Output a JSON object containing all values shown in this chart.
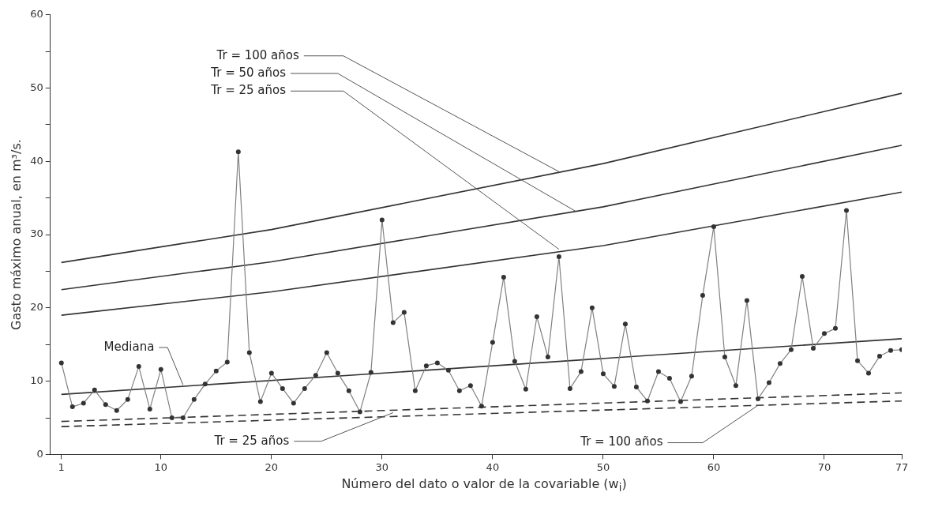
{
  "chart_data": {
    "type": "line",
    "xlabel": "Número del dato o valor de la covariable (w$_{i}$)",
    "ylabel": "Gasto máximo anual, en m³/s.",
    "xlim": [
      0,
      77
    ],
    "xticks": [
      1,
      10,
      20,
      30,
      40,
      50,
      60,
      70,
      77
    ],
    "ylim": [
      0,
      60
    ],
    "yticks": [
      0,
      {
        "value": 5,
        "label": null
      },
      10,
      {
        "value": 15,
        "label": null
      },
      20,
      {
        "value": 25,
        "label": null
      },
      30,
      {
        "value": 35,
        "label": null
      },
      40,
      {
        "value": 45,
        "label": null
      },
      50,
      {
        "value": 55,
        "label": null
      },
      60
    ],
    "grid": false,
    "legend": false,
    "series": [
      {
        "marker": "circle",
        "line_style": "solid",
        "color": "#808080",
        "x": [
          1,
          2,
          3,
          4,
          5,
          6,
          7,
          8,
          9,
          10,
          11,
          12,
          13,
          14,
          15,
          16,
          17,
          18,
          19,
          20,
          21,
          22,
          23,
          24,
          25,
          26,
          27,
          28,
          29,
          30,
          31,
          32,
          33,
          34,
          35,
          36,
          37,
          38,
          39,
          40,
          41,
          42,
          43,
          44,
          45,
          46,
          47,
          48,
          49,
          50,
          51,
          52,
          53,
          54,
          55,
          56,
          57,
          58,
          59,
          60,
          61,
          62,
          63,
          64,
          65,
          66,
          67,
          68,
          69,
          70,
          71,
          72,
          73,
          74,
          75,
          76,
          77
        ],
        "values": [
          12.5,
          6.5,
          7.0,
          8.8,
          6.8,
          6.0,
          7.5,
          12.0,
          6.2,
          11.6,
          5.0,
          5.0,
          7.5,
          9.6,
          11.4,
          12.6,
          41.3,
          13.9,
          7.2,
          11.1,
          9.0,
          7.0,
          9.0,
          10.8,
          13.9,
          11.1,
          8.7,
          5.8,
          11.2,
          32.0,
          18.0,
          19.4,
          8.7,
          12.1,
          12.5,
          11.5,
          8.7,
          9.4,
          6.6,
          15.3,
          24.2,
          12.7,
          8.9,
          18.8,
          13.3,
          27.0,
          9.0,
          11.3,
          20.0,
          11.0,
          9.3,
          17.8,
          9.2,
          7.3,
          11.3,
          10.4,
          7.2,
          10.7,
          21.7,
          31.1,
          13.3,
          9.4,
          21.0,
          7.6,
          9.8,
          12.4,
          14.3,
          24.3,
          14.5,
          16.5,
          17.2,
          33.3,
          12.8,
          11.1,
          13.4,
          14.2,
          14.3
        ]
      },
      {
        "marker": "none",
        "line_style": "solid",
        "color": "#333333",
        "x": [
          1,
          20,
          50,
          77
        ],
        "values": [
          26.2,
          30.7,
          39.7,
          49.3
        ]
      },
      {
        "marker": "none",
        "line_style": "solid",
        "color": "#333333",
        "x": [
          1,
          20,
          50,
          77
        ],
        "values": [
          22.5,
          26.3,
          33.8,
          42.2
        ]
      },
      {
        "marker": "none",
        "line_style": "solid",
        "color": "#333333",
        "x": [
          1,
          20,
          50,
          77
        ],
        "values": [
          19.0,
          22.2,
          28.5,
          35.8
        ]
      },
      {
        "marker": "none",
        "line_style": "solid",
        "color": "#333333",
        "x": [
          1,
          77
        ],
        "values": [
          8.2,
          15.8
        ]
      },
      {
        "marker": "none",
        "line_style": "dashed",
        "color": "#333333",
        "x": [
          1,
          77
        ],
        "values": [
          4.5,
          8.4
        ]
      },
      {
        "marker": "none",
        "line_style": "dashed",
        "color": "#333333",
        "x": [
          1,
          77
        ],
        "values": [
          3.8,
          7.3
        ]
      }
    ],
    "annotations": [
      {
        "text": "Tr = 100 años",
        "x": 46,
        "y": 38.6
      },
      {
        "text": "Tr = 50 años",
        "x": 47.5,
        "y": 33.2
      },
      {
        "text": "Tr = 25 años",
        "x": 46,
        "y": 28.0
      },
      {
        "text": "Mediana",
        "x": 12,
        "y": 9.5
      },
      {
        "text": "Tr = 25 años",
        "x": 31,
        "y": 5.7
      },
      {
        "text": "Tr = 100 años",
        "x": 64,
        "y": 6.7
      }
    ]
  }
}
